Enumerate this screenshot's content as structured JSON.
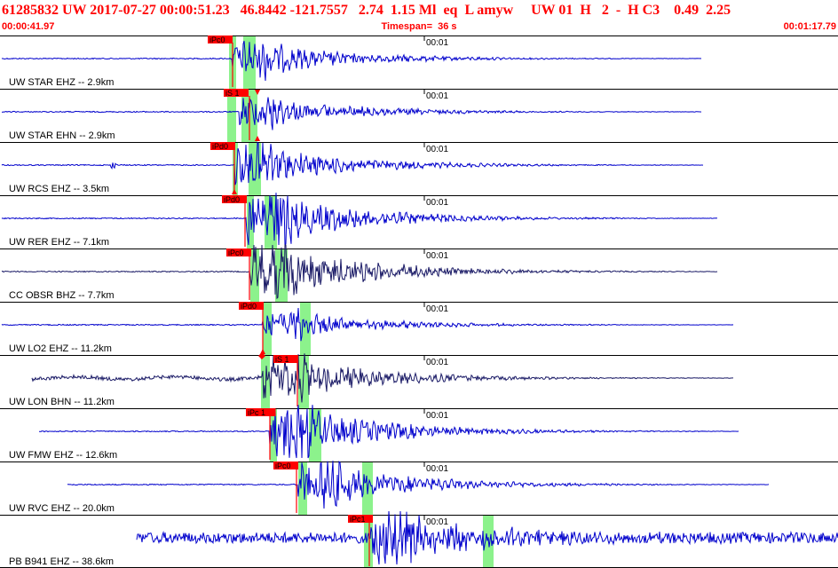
{
  "header": {
    "title": "61285832 UW 2017-07-27 00:00:51.23   46.8442 -121.7557   2.74  1.15 Ml  eq  L amyw     UW 01  H   2  -  H C3    0.49  2.25",
    "start_time": "00:00:41.97",
    "timespan": "Timespan=  36 s",
    "end_time": "00:01:17.79"
  },
  "colors": {
    "header_text": "#ff0000",
    "trace_blue": "#0000cc",
    "trace_dark": "#1a1a66",
    "pick_red": "#ff0000",
    "window_green": "#8cf28c",
    "panel_border": "#000000"
  },
  "chart_data": {
    "type": "seismogram",
    "time_range": [
      "00:00:41.97",
      "00:01:17.79"
    ],
    "time_tick_label": "00:01",
    "channels": [
      {
        "label": "UW STAR EHZ -- 2.9km",
        "station": "STAR",
        "component": "EHZ",
        "distance_km": 2.9,
        "pick": "iPc0",
        "trace_color": "blue"
      },
      {
        "label": "UW STAR EHN -- 2.9km",
        "station": "STAR",
        "component": "EHN",
        "distance_km": 2.9,
        "pick": "iS 1",
        "trace_color": "blue"
      },
      {
        "label": "UW RCS EHZ -- 3.5km",
        "station": "RCS",
        "component": "EHZ",
        "distance_km": 3.5,
        "pick": "iPd0",
        "trace_color": "blue"
      },
      {
        "label": "UW RER EHZ -- 7.1km",
        "station": "RER",
        "component": "EHZ",
        "distance_km": 7.1,
        "pick": "iPd0",
        "trace_color": "blue"
      },
      {
        "label": "CC OBSR BHZ -- 7.7km",
        "station": "OBSR",
        "component": "BHZ",
        "distance_km": 7.7,
        "pick": "iPc0",
        "trace_color": "dark"
      },
      {
        "label": "UW LO2 EHZ -- 11.2km",
        "station": "LO2",
        "component": "EHZ",
        "distance_km": 11.2,
        "pick": "iPd0",
        "trace_color": "blue"
      },
      {
        "label": "UW LON BHN -- 11.2km",
        "station": "LON",
        "component": "BHN",
        "distance_km": 11.2,
        "pick": "iS 1",
        "trace_color": "dark"
      },
      {
        "label": "UW FMW EHZ -- 12.6km",
        "station": "FMW",
        "component": "EHZ",
        "distance_km": 12.6,
        "pick": "iPc 1",
        "trace_color": "blue"
      },
      {
        "label": "UW RVC EHZ -- 20.0km",
        "station": "RVC",
        "component": "EHZ",
        "distance_km": 20.0,
        "pick": "iPc0",
        "trace_color": "blue"
      },
      {
        "label": "PB B941 EHZ -- 38.6km",
        "station": "B941",
        "component": "EHZ",
        "distance_km": 38.6,
        "pick": "iPc1",
        "trace_color": "blue"
      }
    ]
  }
}
